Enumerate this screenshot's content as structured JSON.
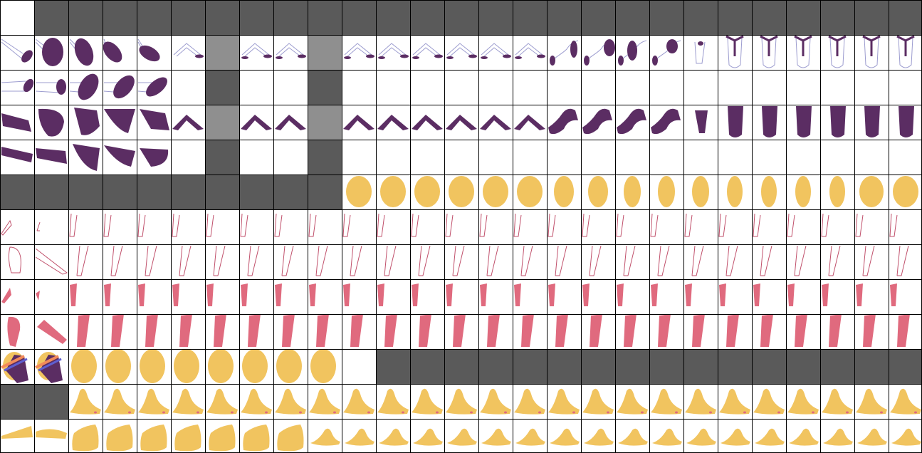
{
  "colors": {
    "grid_line": "#000000",
    "dark_band": "#5a5a5a",
    "light_cell": "#8f8f8f",
    "purple": "#5b2d63",
    "outline_blue": "#9c9ccf",
    "yellow": "#f1c45f",
    "pink": "#e06a7e",
    "pink_line": "#c0506b",
    "orange_stripe": "#f28a5a",
    "blue_stripe": "#5f5fd0"
  },
  "sheet": {
    "columns": 27,
    "rows": 13,
    "row_contents": [
      {
        "row": 0,
        "content": "empty-corner-then-dark-band"
      },
      {
        "row": 1,
        "content": "purple-shape-with-outline"
      },
      {
        "row": 2,
        "content": "purple-shape-with-outline"
      },
      {
        "row": 3,
        "content": "purple-solid-shape"
      },
      {
        "row": 4,
        "content": "purple-solid-shape"
      },
      {
        "row": 5,
        "content": "dark-band-then-yellow-ovals"
      },
      {
        "row": 6,
        "content": "pink-thin-outline"
      },
      {
        "row": 7,
        "content": "pink-thin-outline"
      },
      {
        "row": 8,
        "content": "pink-solid-small"
      },
      {
        "row": 9,
        "content": "pink-solid-large"
      },
      {
        "row": 10,
        "content": "yellow-ovals-then-dark-band"
      },
      {
        "row": 11,
        "content": "yellow-foot-side"
      },
      {
        "row": 12,
        "content": "yellow-foot-side"
      }
    ]
  }
}
